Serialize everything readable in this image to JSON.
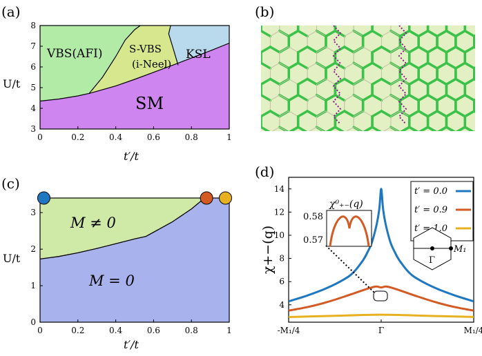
{
  "panels": {
    "a": {
      "label": "(a)",
      "region_labels": {
        "vbs": "VBS(AFI)",
        "svbs_1": "S-VBS",
        "svbs_2": "(i-Neel)",
        "ksl": "KSL",
        "sm": "SM"
      },
      "colors": {
        "vbs": "#b2eba6",
        "svbs": "#d6e78e",
        "ksl": "#b9d9ec",
        "sm": "#cf85f0"
      }
    },
    "b": {
      "label": "(b)"
    },
    "c": {
      "label": "(c)",
      "region_labels": {
        "top": "M ≠ 0",
        "bottom": "M = 0"
      },
      "colors": {
        "top": "#cfe9a6",
        "bottom": "#a8b3ee"
      }
    },
    "d": {
      "label": "(d)",
      "inset_title": "χ⁰₊₋(q)",
      "inset_ticks": [
        "0.58",
        "0.57"
      ],
      "bz_labels": {
        "gamma": "Γ",
        "m1": "M₁"
      }
    }
  },
  "chart_data": [
    {
      "id": "a",
      "type": "area",
      "title": "",
      "xlabel": "t′/t",
      "ylabel": "U/t",
      "xlim": [
        0,
        1
      ],
      "ylim": [
        3,
        8
      ],
      "xticks": [
        "0",
        "0.2",
        "0.4",
        "0.6",
        "0.8",
        "1"
      ],
      "yticks": [
        "3",
        "4",
        "5",
        "6",
        "7",
        "8"
      ],
      "series": [
        {
          "name": "SM boundary",
          "x": [
            0,
            0.1,
            0.2,
            0.26,
            0.4,
            0.5,
            0.6,
            0.7,
            0.8,
            0.9,
            1.0
          ],
          "y": [
            4.35,
            4.45,
            4.6,
            4.72,
            5.08,
            5.4,
            5.74,
            6.08,
            6.43,
            6.78,
            7.15
          ]
        },
        {
          "name": "VBS/S-VBS boundary",
          "x": [
            0.26,
            0.33,
            0.4,
            0.45,
            0.5,
            0.53
          ],
          "y": [
            4.72,
            5.5,
            6.5,
            7.3,
            7.8,
            8.0
          ]
        },
        {
          "name": "S-VBS/KSL boundary",
          "x": [
            0.73,
            0.7,
            0.68,
            0.69
          ],
          "y": [
            6.08,
            7.0,
            7.6,
            8.0
          ]
        }
      ]
    },
    {
      "id": "c",
      "type": "area",
      "title": "",
      "xlabel": "t′/t",
      "ylabel": "U/t",
      "xlim": [
        0,
        1
      ],
      "ylim": [
        0,
        3.4
      ],
      "xticks": [
        "0",
        "0.2",
        "0.4",
        "0.6",
        "0.8",
        "1"
      ],
      "yticks": [
        "0",
        "1",
        "2",
        "3"
      ],
      "series": [
        {
          "name": "M boundary",
          "x": [
            0,
            0.1,
            0.2,
            0.3,
            0.4,
            0.5,
            0.56,
            0.7,
            0.8,
            0.87
          ],
          "y": [
            1.73,
            1.8,
            1.9,
            2.02,
            2.15,
            2.28,
            2.35,
            2.75,
            3.1,
            3.4
          ]
        }
      ],
      "markers": [
        {
          "name": "t′=0.0",
          "x": 0.02,
          "y": 3.4,
          "color": "#1f77c0"
        },
        {
          "name": "t′=0.9",
          "x": 0.88,
          "y": 3.4,
          "color": "#d45a24"
        },
        {
          "name": "t′=1.0",
          "x": 0.98,
          "y": 3.4,
          "color": "#e6b020"
        }
      ]
    },
    {
      "id": "d",
      "type": "line",
      "title": "",
      "xlabel": "",
      "ylabel": "χ+−(q)",
      "xlim": [
        -1,
        1
      ],
      "ylim": [
        2.5,
        15
      ],
      "xticks": [
        "-M₁/4",
        "Γ",
        "M₁/4"
      ],
      "yticks": [
        "4",
        "6",
        "8",
        "10",
        "12",
        "14"
      ],
      "series": [
        {
          "name": "t′ = 0.0",
          "color": "#1f77c0",
          "x": [
            -1,
            -0.8,
            -0.6,
            -0.4,
            -0.3,
            -0.2,
            -0.15,
            -0.1,
            -0.05,
            -0.02,
            0,
            0.02,
            0.05,
            0.1,
            0.15,
            0.2,
            0.3,
            0.4,
            0.6,
            0.8,
            1
          ],
          "y": [
            4.3,
            4.8,
            5.4,
            6.2,
            6.8,
            7.8,
            8.5,
            9.4,
            10.9,
            12.3,
            14.0,
            12.3,
            10.9,
            9.4,
            8.5,
            7.8,
            6.8,
            6.2,
            5.4,
            4.8,
            4.3
          ]
        },
        {
          "name": "t′ = 0.9",
          "color": "#d45a24",
          "x": [
            -1,
            -0.8,
            -0.6,
            -0.4,
            -0.2,
            -0.1,
            -0.05,
            0,
            0.05,
            0.1,
            0.2,
            0.4,
            0.6,
            0.8,
            1
          ],
          "y": [
            3.5,
            3.8,
            4.2,
            4.7,
            5.25,
            5.5,
            5.58,
            5.5,
            5.58,
            5.5,
            5.25,
            4.7,
            4.2,
            3.8,
            3.5
          ]
        },
        {
          "name": "t′ = 1.0",
          "color": "#e6b020",
          "x": [
            -1,
            -0.5,
            0,
            0.5,
            1
          ],
          "y": [
            2.95,
            3.05,
            3.15,
            3.05,
            2.95
          ]
        }
      ]
    }
  ]
}
